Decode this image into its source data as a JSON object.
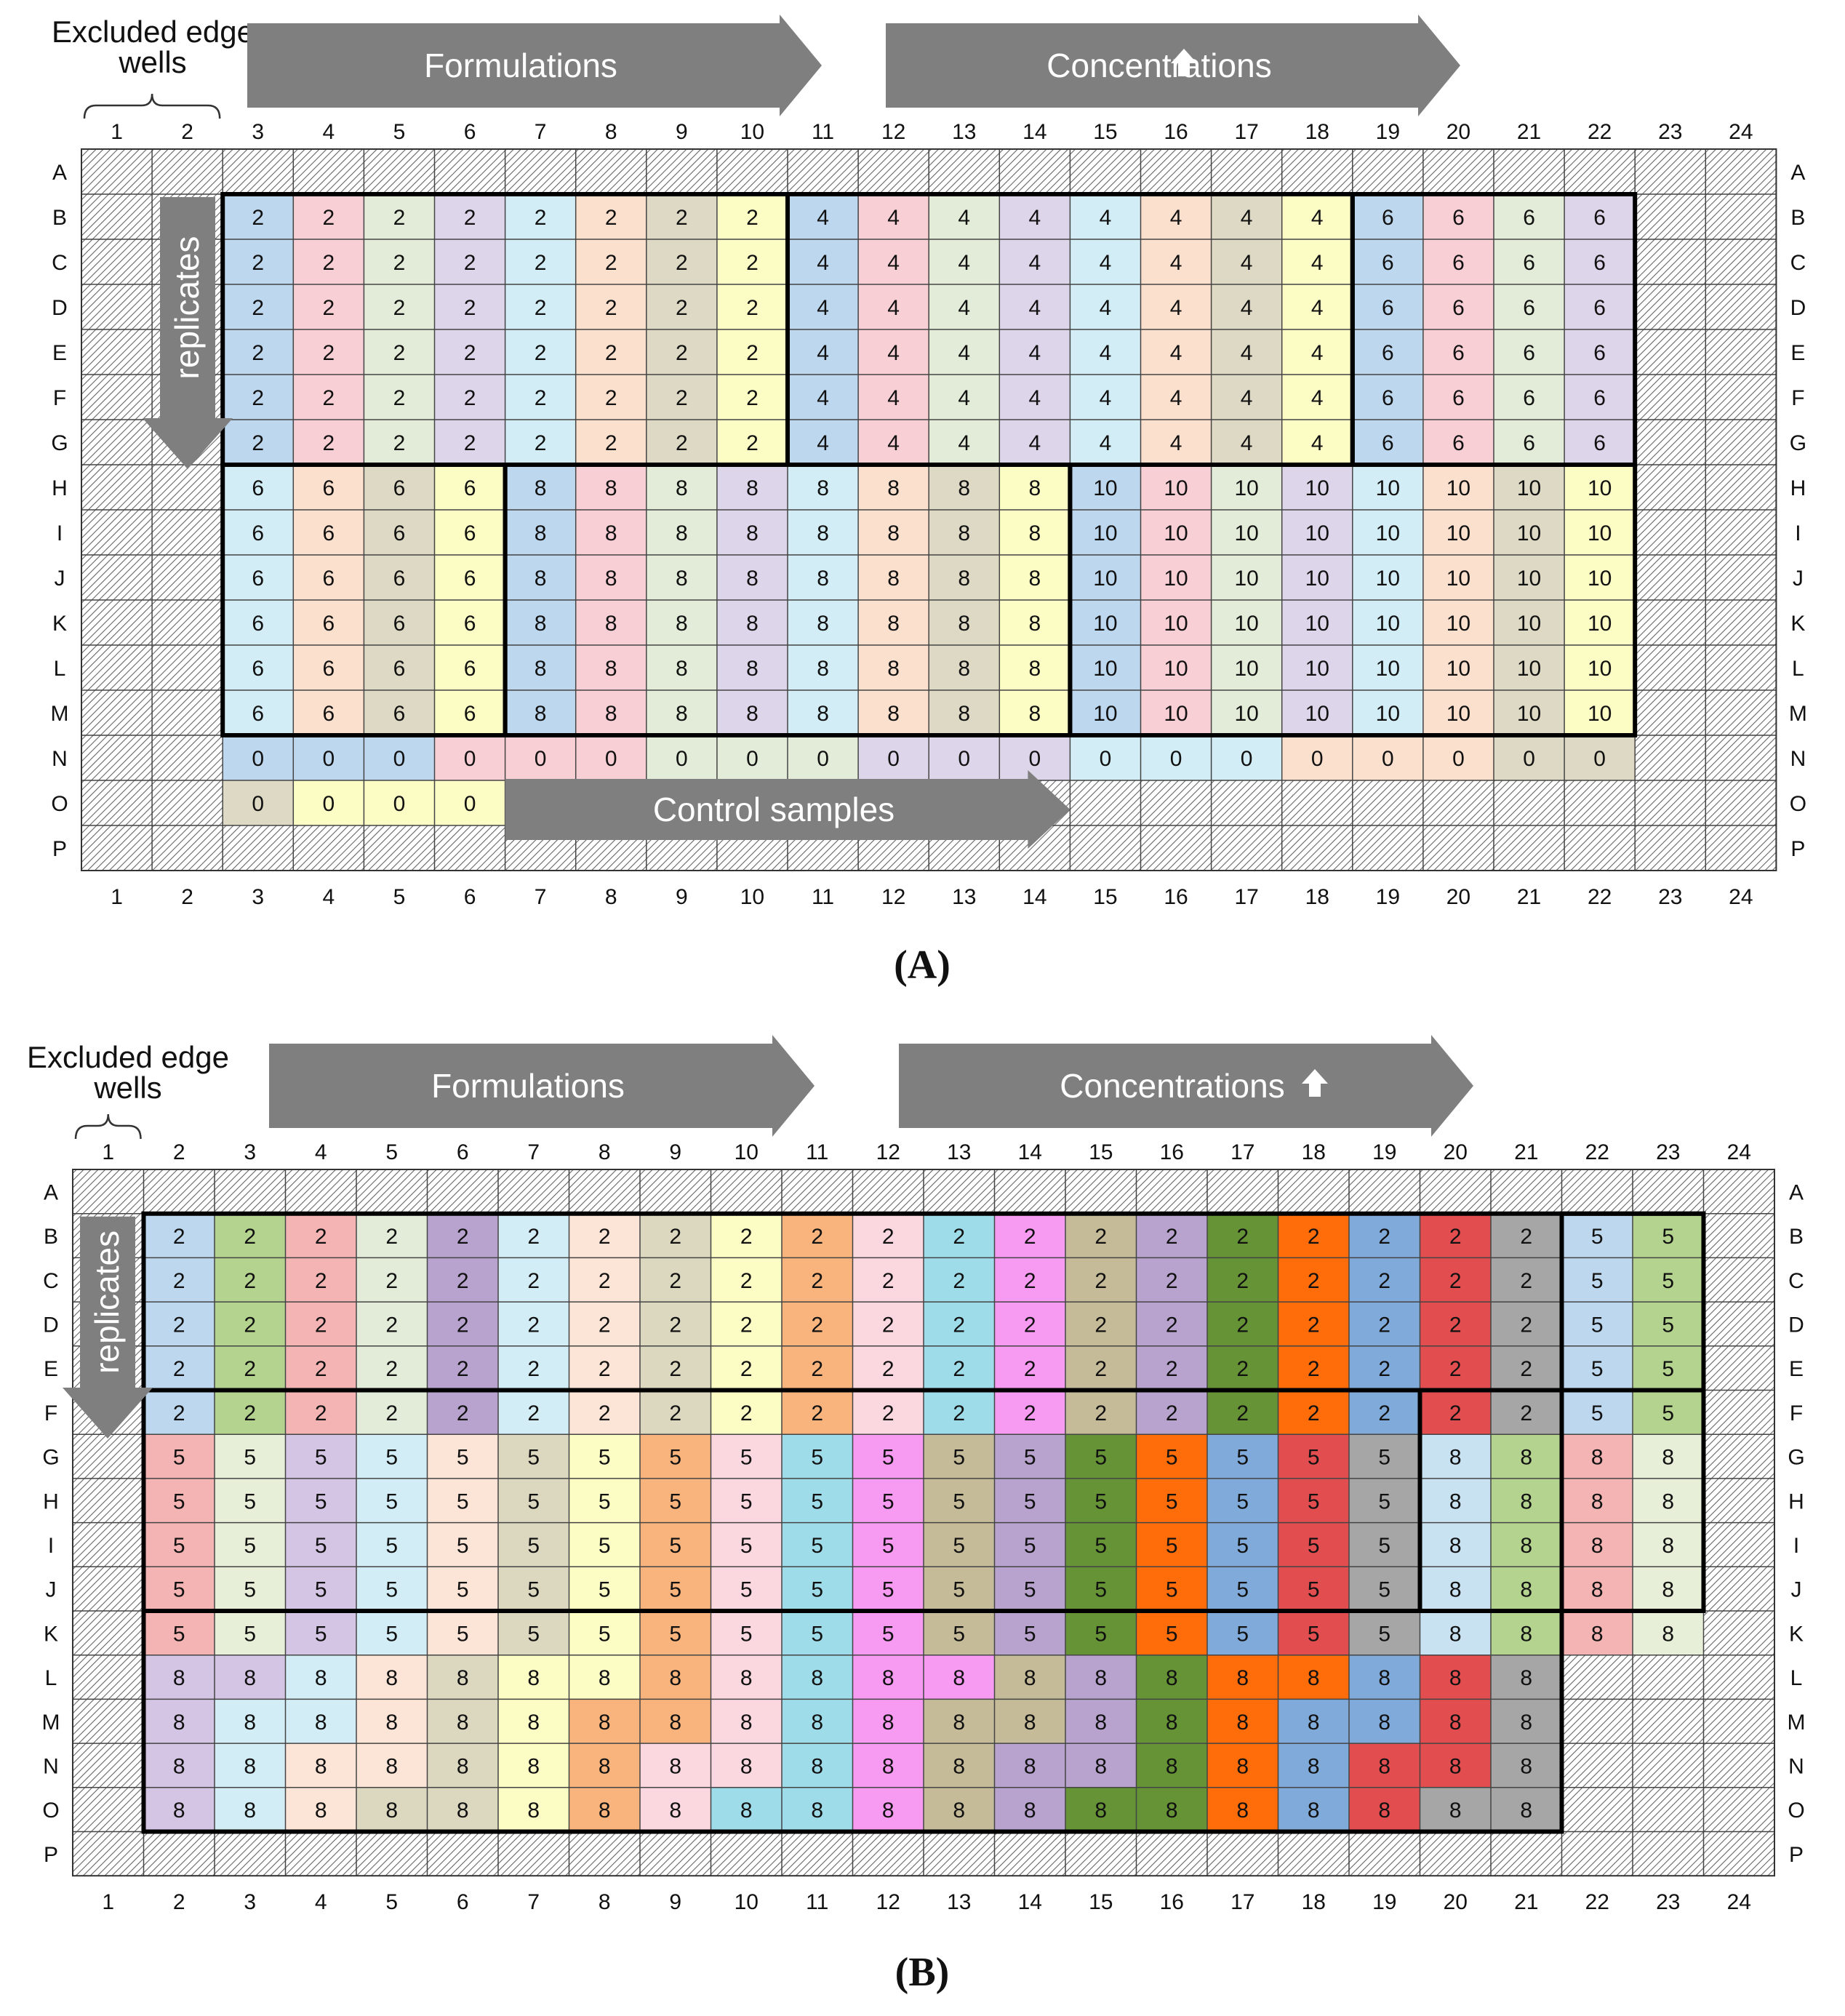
{
  "rows": [
    "A",
    "B",
    "C",
    "D",
    "E",
    "F",
    "G",
    "H",
    "I",
    "J",
    "K",
    "L",
    "M",
    "N",
    "O",
    "P"
  ],
  "cols": [
    "1",
    "2",
    "3",
    "4",
    "5",
    "6",
    "7",
    "8",
    "9",
    "10",
    "11",
    "12",
    "13",
    "14",
    "15",
    "16",
    "17",
    "18",
    "19",
    "20",
    "21",
    "22",
    "23",
    "24"
  ],
  "colors": {
    "k": "#dfdfdf",
    "blue": "#bdd7ee",
    "pink": "#f8cfd5",
    "sage": "#e3ecd9",
    "lav": "#ddd6ea",
    "cyan": "#d2edf5",
    "peach": "#fce0ce",
    "tan": "#ddd9c4",
    "yel": "#fcfcc5",
    "green": "#b4d38e",
    "rose": "#f4b4b4",
    "lpeach": "#fce4d6",
    "gry": "#dcd8c0",
    "orange": "#f8b47c",
    "lpink": "#fbd7df",
    "teal": "#9fdcea",
    "mag": "#f79bf2",
    "khaki": "#c5bb98",
    "purple": "#b8a3cf",
    "dgreen": "#659336",
    "dorange": "#ff6c0a",
    "mblue": "#80aad9",
    "red": "#e24d4f",
    "grey": "#a6a6a6",
    "pblue": "#bdd7ee",
    "pgreen": "#b4d38e",
    "mint": "#e7efd9",
    "ltblue": "#c9e2f2",
    "ltpur": "#d3c5e3",
    "ltpink": "#fcdfe4"
  },
  "panelA": {
    "caption": "(A)",
    "excluded_label": "Excluded edge\nwells",
    "arrow1": "Formulations",
    "arrow2": "Concentrations",
    "replicates": "replicates",
    "controls": "Control samples",
    "excluded_cols": [
      1,
      2
    ],
    "regions": [
      {
        "rows": "B-G",
        "cols": [
          3,
          10
        ],
        "value": "2",
        "colors": [
          "blue",
          "pink",
          "sage",
          "lav",
          "cyan",
          "peach",
          "tan",
          "yel"
        ]
      },
      {
        "rows": "B-G",
        "cols": [
          11,
          18
        ],
        "value": "4",
        "colors": [
          "blue",
          "pink",
          "sage",
          "lav",
          "cyan",
          "peach",
          "tan",
          "yel"
        ]
      },
      {
        "rows": "B-G",
        "cols": [
          19,
          22
        ],
        "value": "6",
        "colors": [
          "blue",
          "pink",
          "sage",
          "lav"
        ]
      },
      {
        "rows": "H-M",
        "cols": [
          3,
          6
        ],
        "value": "6",
        "colors": [
          "cyan",
          "peach",
          "tan",
          "yel"
        ]
      },
      {
        "rows": "H-M",
        "cols": [
          7,
          14
        ],
        "value": "8",
        "colors": [
          "blue",
          "pink",
          "sage",
          "lav",
          "cyan",
          "peach",
          "tan",
          "yel"
        ]
      },
      {
        "rows": "H-M",
        "cols": [
          15,
          22
        ],
        "value": "10",
        "colors": [
          "blue",
          "pink",
          "sage",
          "lav",
          "cyan",
          "peach",
          "tan",
          "yel"
        ]
      }
    ],
    "row_N": {
      "value": "0",
      "colors": [
        "blue",
        "blue",
        "blue",
        "pink",
        "pink",
        "pink",
        "sage",
        "sage",
        "sage",
        "lav",
        "lav",
        "lav",
        "cyan",
        "cyan",
        "cyan",
        "peach",
        "peach",
        "peach",
        "tan",
        "tan"
      ]
    },
    "row_O": {
      "value": "0",
      "colors": [
        "tan",
        "yel",
        "yel",
        "yel"
      ]
    }
  },
  "panelB": {
    "caption": "(B)",
    "excluded_label": "Excluded edge\nwells",
    "arrow1": "Formulations",
    "arrow2": "Concentrations",
    "replicates": "replicates",
    "excluded_cols": [
      1
    ],
    "rows_BF": {
      "value2_colors": [
        "blue",
        "green",
        "rose",
        "sage",
        "purple",
        "cyan",
        "lpeach",
        "gry",
        "yel",
        "orange",
        "lpink",
        "teal",
        "mag",
        "khaki",
        "purple",
        "dgreen",
        "dorange",
        "mblue",
        "red",
        "grey"
      ],
      "value5_colors": [
        "blue",
        "green"
      ]
    },
    "rows_GK": {
      "value5_colors": [
        "rose",
        "mint",
        "ltpur",
        "cyan",
        "lpeach",
        "gry",
        "yel",
        "orange",
        "lpink",
        "teal",
        "mag",
        "khaki",
        "purple",
        "dgreen",
        "dorange",
        "mblue",
        "red",
        "grey"
      ],
      "value8_colors": [
        "ltblue",
        "pgreen",
        "rose",
        "mint"
      ]
    },
    "rows_LO": [
      [
        "ltpur",
        "ltpur",
        "cyan",
        "lpeach",
        "gry",
        "yel",
        "yel",
        "orange",
        "lpink",
        "teal",
        "mag",
        "mag",
        "khaki",
        "purple",
        "dgreen",
        "dorange",
        "dorange",
        "mblue",
        "red",
        "grey"
      ],
      [
        "ltpur",
        "cyan",
        "cyan",
        "lpeach",
        "gry",
        "yel",
        "orange",
        "orange",
        "lpink",
        "teal",
        "mag",
        "khaki",
        "khaki",
        "purple",
        "dgreen",
        "dorange",
        "mblue",
        "mblue",
        "red",
        "grey"
      ],
      [
        "ltpur",
        "cyan",
        "lpeach",
        "lpeach",
        "gry",
        "yel",
        "orange",
        "lpink",
        "lpink",
        "teal",
        "mag",
        "khaki",
        "purple",
        "purple",
        "dgreen",
        "dorange",
        "mblue",
        "red",
        "red",
        "grey"
      ],
      [
        "ltpur",
        "cyan",
        "lpeach",
        "gry",
        "gry",
        "yel",
        "orange",
        "lpink",
        "teal",
        "teal",
        "mag",
        "khaki",
        "purple",
        "dgreen",
        "dgreen",
        "dorange",
        "mblue",
        "red",
        "grey",
        "grey"
      ]
    ],
    "value_LO": "8"
  }
}
